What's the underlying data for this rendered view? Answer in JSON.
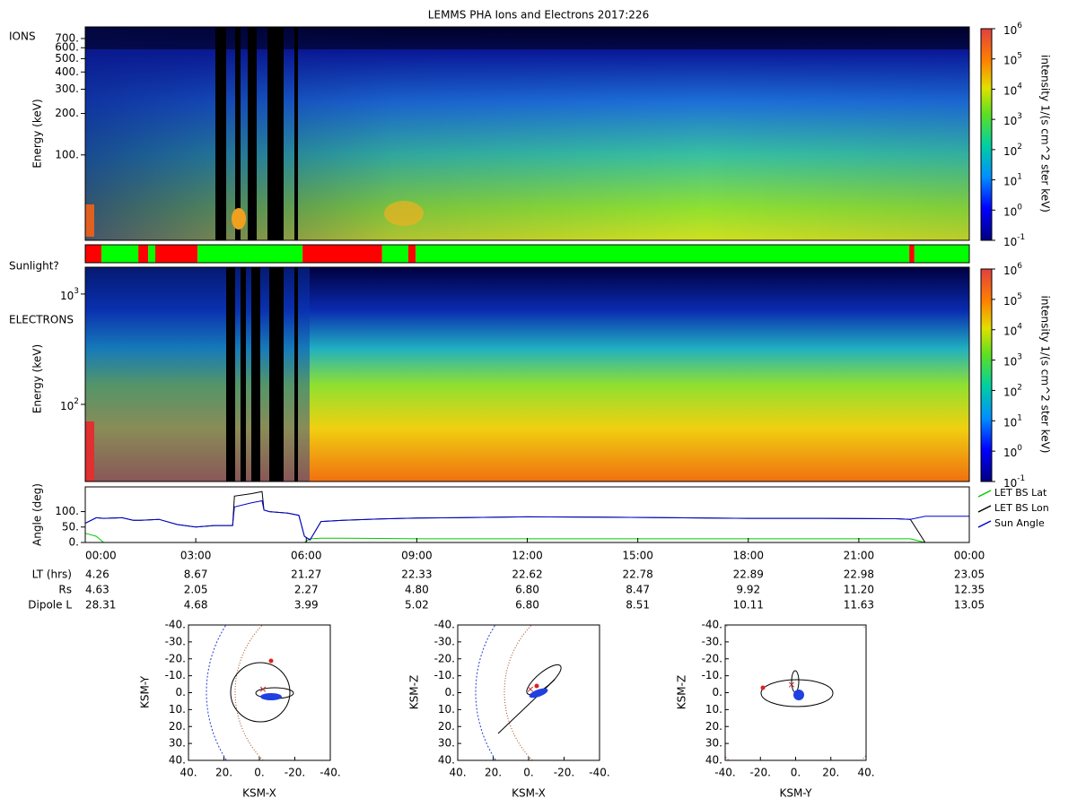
{
  "title": "LEMMS PHA Ions and Electrons  2017:226",
  "chart_data": [
    {
      "type": "spectrogram",
      "label": "IONS",
      "y_label": "Energy (keV)",
      "log_y": true,
      "ylim": [
        24,
        850
      ],
      "yticks": [
        {
          "value": 700,
          "label": "700."
        },
        {
          "value": 600,
          "label": "600."
        },
        {
          "value": 500,
          "label": "500."
        },
        {
          "value": 400,
          "label": "400."
        },
        {
          "value": 300,
          "label": "300."
        },
        {
          "value": 200,
          "label": "200."
        },
        {
          "value": 100,
          "label": "100."
        }
      ],
      "colorbar": {
        "label": "intensity 1/(s cm^2 ster keV)",
        "lim": [
          0.1,
          1000000
        ],
        "ticks": [
          {
            "value": 0.1,
            "base": "10",
            "exp": "-1"
          },
          {
            "value": 1,
            "base": "10",
            "exp": "0"
          },
          {
            "value": 10,
            "base": "10",
            "exp": "1"
          },
          {
            "value": 100,
            "base": "10",
            "exp": "2"
          },
          {
            "value": 1000,
            "base": "10",
            "exp": "3"
          },
          {
            "value": 10000,
            "base": "10",
            "exp": "4"
          },
          {
            "value": 100000,
            "base": "10",
            "exp": "5"
          },
          {
            "value": 1000000,
            "base": "10",
            "exp": "6"
          }
        ]
      }
    },
    {
      "type": "timeline",
      "label": "Sunlight?",
      "xlim": [
        0,
        24
      ],
      "segments": [
        {
          "start": 0,
          "end": 0.44,
          "color": "#ff0000"
        },
        {
          "start": 0.44,
          "end": 1.44,
          "color": "#00ff00"
        },
        {
          "start": 1.44,
          "end": 1.71,
          "color": "#ff0000"
        },
        {
          "start": 1.71,
          "end": 1.9,
          "color": "#00ff00"
        },
        {
          "start": 1.9,
          "end": 3.05,
          "color": "#ff0000"
        },
        {
          "start": 3.05,
          "end": 5.9,
          "color": "#00ff00"
        },
        {
          "start": 5.9,
          "end": 8.06,
          "color": "#ff0000"
        },
        {
          "start": 8.06,
          "end": 8.77,
          "color": "#00ff00"
        },
        {
          "start": 8.77,
          "end": 8.97,
          "color": "#ff0000"
        },
        {
          "start": 8.97,
          "end": 22.37,
          "color": "#00ff00"
        },
        {
          "start": 22.37,
          "end": 22.51,
          "color": "#ff0000"
        },
        {
          "start": 22.51,
          "end": 24,
          "color": "#00ff00"
        }
      ]
    },
    {
      "type": "spectrogram",
      "label": "ELECTRONS",
      "y_label": "Energy (keV)",
      "log_y": true,
      "ylim": [
        20,
        1750
      ],
      "yticks": [
        {
          "value": 1000,
          "base": "10",
          "exp": "3"
        },
        {
          "value": 100,
          "base": "10",
          "exp": "2"
        }
      ],
      "colorbar": {
        "label": "intensity 1/(s cm^2 ster keV)",
        "lim": [
          0.1,
          1000000
        ],
        "ticks": [
          {
            "value": 0.1,
            "base": "10",
            "exp": "-1"
          },
          {
            "value": 1,
            "base": "10",
            "exp": "0"
          },
          {
            "value": 10,
            "base": "10",
            "exp": "1"
          },
          {
            "value": 100,
            "base": "10",
            "exp": "2"
          },
          {
            "value": 1000,
            "base": "10",
            "exp": "3"
          },
          {
            "value": 10000,
            "base": "10",
            "exp": "4"
          },
          {
            "value": 100000,
            "base": "10",
            "exp": "5"
          },
          {
            "value": 1000000,
            "base": "10",
            "exp": "6"
          }
        ]
      }
    },
    {
      "type": "line",
      "y_label": "Angle (deg)",
      "xlim": [
        0,
        24
      ],
      "ylim": [
        0,
        180
      ],
      "yticks": [
        {
          "value": 0,
          "label": "0."
        },
        {
          "value": 50,
          "label": "50."
        },
        {
          "value": 100,
          "label": "100."
        }
      ],
      "xticks": [
        {
          "value": 0,
          "label": "00:00"
        },
        {
          "value": 3,
          "label": "03:00"
        },
        {
          "value": 6,
          "label": "06:00"
        },
        {
          "value": 9,
          "label": "09:00"
        },
        {
          "value": 12,
          "label": "12:00"
        },
        {
          "value": 15,
          "label": "15:00"
        },
        {
          "value": 18,
          "label": "18:00"
        },
        {
          "value": 21,
          "label": "21:00"
        },
        {
          "value": 24,
          "label": "00:00"
        }
      ],
      "x": [
        0,
        0.3,
        0.5,
        1,
        1.3,
        1.5,
        2,
        2.5,
        3,
        3.5,
        4,
        4.05,
        4.5,
        4.8,
        4.85,
        5,
        5.5,
        5.8,
        5.95,
        6.1,
        6.4,
        7,
        8,
        9,
        10,
        12,
        14,
        16,
        18,
        20,
        22,
        22.4,
        22.8,
        23,
        24
      ],
      "series": [
        {
          "name": "LET BS Lat",
          "color": "#00cc00",
          "values": [
            30,
            20,
            0,
            0,
            0,
            0,
            0,
            0,
            0,
            0,
            0,
            0,
            0,
            0,
            0,
            0,
            0,
            0,
            0,
            12,
            14,
            14,
            13,
            12,
            12,
            12,
            12,
            12,
            12,
            12,
            12,
            12,
            0,
            0,
            0
          ]
        },
        {
          "name": "LET BS Lon",
          "color": "#000000",
          "values": [
            62,
            80,
            78,
            80,
            72,
            72,
            75,
            58,
            50,
            55,
            55,
            150,
            158,
            165,
            105,
            100,
            95,
            88,
            20,
            8,
            68,
            72,
            76,
            79,
            80,
            83,
            82,
            80,
            78,
            78,
            77,
            75,
            0,
            0,
            0
          ]
        },
        {
          "name": "Sun Angle",
          "color": "#0000cc",
          "values": [
            62,
            80,
            78,
            80,
            72,
            72,
            75,
            58,
            50,
            55,
            55,
            115,
            128,
            135,
            105,
            100,
            95,
            88,
            20,
            8,
            68,
            72,
            76,
            79,
            80,
            83,
            82,
            80,
            78,
            78,
            77,
            75,
            85,
            85,
            85
          ]
        }
      ]
    },
    {
      "type": "orbit",
      "x_label": "KSM-X",
      "y_label": "KSM-Y",
      "xlim": [
        40,
        -40
      ],
      "ylim": [
        40,
        -40
      ],
      "xticks": [
        {
          "value": 40,
          "label": "40."
        },
        {
          "value": 20,
          "label": "20."
        },
        {
          "value": 0,
          "label": "0."
        },
        {
          "value": -20,
          "label": "-20."
        },
        {
          "value": -40,
          "label": "-40."
        }
      ],
      "yticks": [
        {
          "value": -40,
          "label": "-40."
        },
        {
          "value": -30,
          "label": "-30."
        },
        {
          "value": -20,
          "label": "-20."
        },
        {
          "value": -10,
          "label": "-10."
        },
        {
          "value": 0,
          "label": "0."
        },
        {
          "value": 10,
          "label": "10."
        },
        {
          "value": 20,
          "label": "20."
        },
        {
          "value": 30,
          "label": "30."
        },
        {
          "value": 40,
          "label": "40."
        }
      ]
    },
    {
      "type": "orbit",
      "x_label": "KSM-X",
      "y_label": "KSM-Z",
      "xlim": [
        40,
        -40
      ],
      "ylim": [
        40,
        -40
      ],
      "xticks": [
        {
          "value": 40,
          "label": "40."
        },
        {
          "value": 20,
          "label": "20."
        },
        {
          "value": 0,
          "label": "0."
        },
        {
          "value": -20,
          "label": "-20."
        },
        {
          "value": -40,
          "label": "-40."
        }
      ],
      "yticks": [
        {
          "value": -40,
          "label": "-40."
        },
        {
          "value": -30,
          "label": "-30."
        },
        {
          "value": -20,
          "label": "-20."
        },
        {
          "value": -10,
          "label": "-10."
        },
        {
          "value": 0,
          "label": "0."
        },
        {
          "value": 10,
          "label": "10."
        },
        {
          "value": 20,
          "label": "20."
        },
        {
          "value": 30,
          "label": "30."
        },
        {
          "value": 40,
          "label": "40."
        }
      ]
    },
    {
      "type": "orbit",
      "x_label": "KSM-Y",
      "y_label": "KSM-Z",
      "xlim": [
        -40,
        40
      ],
      "ylim": [
        40,
        -40
      ],
      "xticks": [
        {
          "value": -40,
          "label": "-40."
        },
        {
          "value": -20,
          "label": "-20."
        },
        {
          "value": 0,
          "label": "0."
        },
        {
          "value": 20,
          "label": "20."
        },
        {
          "value": 40,
          "label": "40."
        }
      ],
      "yticks": [
        {
          "value": -40,
          "label": "-40."
        },
        {
          "value": -30,
          "label": "-30."
        },
        {
          "value": -20,
          "label": "-20."
        },
        {
          "value": -10,
          "label": "-10."
        },
        {
          "value": 0,
          "label": "0."
        },
        {
          "value": 10,
          "label": "10."
        },
        {
          "value": 20,
          "label": "20."
        },
        {
          "value": 30,
          "label": "30."
        },
        {
          "value": 40,
          "label": "40."
        }
      ]
    }
  ],
  "ephemeris": {
    "labels": [
      "LT (hrs)",
      "Rs",
      "Dipole L"
    ],
    "rows": [
      [
        "4.26",
        "8.67",
        "21.27",
        "22.33",
        "22.62",
        "22.78",
        "22.89",
        "22.98",
        "23.05"
      ],
      [
        "4.63",
        "2.05",
        "2.27",
        "4.80",
        "6.80",
        "8.47",
        "9.92",
        "11.20",
        "12.35"
      ],
      [
        "28.31",
        "4.68",
        "3.99",
        "5.02",
        "6.80",
        "8.51",
        "10.11",
        "11.63",
        "13.05"
      ]
    ]
  }
}
